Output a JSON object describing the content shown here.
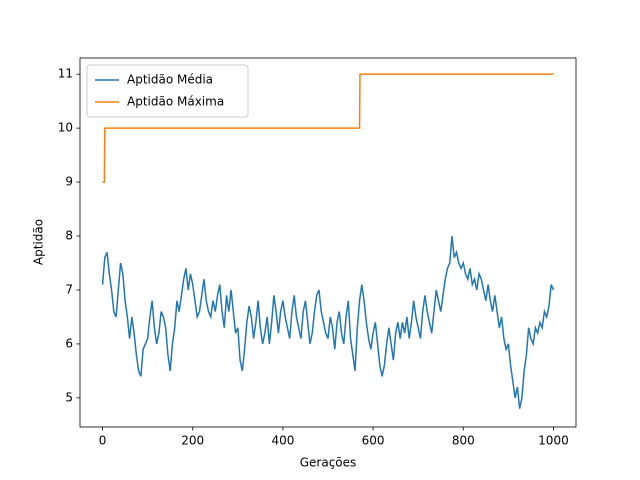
{
  "chart_data": {
    "type": "line",
    "xlabel": "Gerações",
    "ylabel": "Aptidão",
    "xlim": [
      -50,
      1050
    ],
    "ylim": [
      4.46,
      11.3
    ],
    "xticks": [
      0,
      200,
      400,
      600,
      800,
      1000
    ],
    "yticks": [
      5,
      6,
      7,
      8,
      9,
      10,
      11
    ],
    "legend": "upper left",
    "series": [
      {
        "name": "Aptidão Média",
        "color": "#1f77b4",
        "x": [
          0,
          5,
          10,
          15,
          20,
          25,
          30,
          35,
          40,
          45,
          50,
          55,
          60,
          65,
          70,
          75,
          80,
          85,
          90,
          95,
          100,
          105,
          110,
          115,
          120,
          125,
          130,
          135,
          140,
          145,
          150,
          155,
          160,
          165,
          170,
          175,
          180,
          185,
          190,
          195,
          200,
          205,
          210,
          215,
          220,
          225,
          230,
          235,
          240,
          245,
          250,
          255,
          260,
          265,
          270,
          275,
          280,
          285,
          290,
          295,
          300,
          305,
          310,
          315,
          320,
          325,
          330,
          335,
          340,
          345,
          350,
          355,
          360,
          365,
          370,
          375,
          380,
          385,
          390,
          395,
          400,
          405,
          410,
          415,
          420,
          425,
          430,
          435,
          440,
          445,
          450,
          455,
          460,
          465,
          470,
          475,
          480,
          485,
          490,
          495,
          500,
          505,
          510,
          515,
          520,
          525,
          530,
          535,
          540,
          545,
          550,
          555,
          560,
          565,
          570,
          575,
          580,
          585,
          590,
          595,
          600,
          605,
          610,
          615,
          620,
          625,
          630,
          635,
          640,
          645,
          650,
          655,
          660,
          665,
          670,
          675,
          680,
          685,
          690,
          695,
          700,
          705,
          710,
          715,
          720,
          725,
          730,
          735,
          740,
          745,
          750,
          755,
          760,
          765,
          770,
          775,
          780,
          785,
          790,
          795,
          800,
          805,
          810,
          815,
          820,
          825,
          830,
          835,
          840,
          845,
          850,
          855,
          860,
          865,
          870,
          875,
          880,
          885,
          890,
          895,
          900,
          905,
          910,
          915,
          920,
          925,
          930,
          935,
          940,
          945,
          950,
          955,
          960,
          965,
          970,
          975,
          980,
          985,
          990,
          995,
          1000
        ],
        "values": [
          7.1,
          7.6,
          7.7,
          7.3,
          7.0,
          6.6,
          6.5,
          7.0,
          7.5,
          7.3,
          6.8,
          6.5,
          6.1,
          6.5,
          6.2,
          5.8,
          5.5,
          5.4,
          5.9,
          6.0,
          6.1,
          6.5,
          6.8,
          6.3,
          6.0,
          6.2,
          6.6,
          6.5,
          6.3,
          5.8,
          5.5,
          6.0,
          6.3,
          6.8,
          6.6,
          6.9,
          7.2,
          7.4,
          7.0,
          7.3,
          7.1,
          6.8,
          6.5,
          6.6,
          6.9,
          7.2,
          6.8,
          6.6,
          6.5,
          6.8,
          6.6,
          6.9,
          7.1,
          6.6,
          6.3,
          6.9,
          6.6,
          7.0,
          6.6,
          6.2,
          6.3,
          5.7,
          5.5,
          5.9,
          6.4,
          6.7,
          6.5,
          6.1,
          6.4,
          6.8,
          6.3,
          6.0,
          6.2,
          6.5,
          6.0,
          6.4,
          6.9,
          6.6,
          6.2,
          6.6,
          6.8,
          6.5,
          6.3,
          6.1,
          6.6,
          6.9,
          6.5,
          6.3,
          6.1,
          6.6,
          6.8,
          6.4,
          6.0,
          6.2,
          6.6,
          6.9,
          7.0,
          6.6,
          6.4,
          6.2,
          6.1,
          6.5,
          6.3,
          5.9,
          6.4,
          6.6,
          6.2,
          6.0,
          6.5,
          6.8,
          6.1,
          5.8,
          5.5,
          6.3,
          6.8,
          7.1,
          6.8,
          6.4,
          6.1,
          5.9,
          6.2,
          6.4,
          6.0,
          5.6,
          5.4,
          5.6,
          6.0,
          6.3,
          6.0,
          5.7,
          6.2,
          6.4,
          6.1,
          6.4,
          6.2,
          6.5,
          6.1,
          6.4,
          6.8,
          6.5,
          6.3,
          6.1,
          6.6,
          6.9,
          6.6,
          6.4,
          6.2,
          6.6,
          7.0,
          6.8,
          6.6,
          6.9,
          7.2,
          7.4,
          7.5,
          8.0,
          7.6,
          7.7,
          7.5,
          7.4,
          7.5,
          7.3,
          7.2,
          7.4,
          7.1,
          7.2,
          7.0,
          7.3,
          7.2,
          7.0,
          6.8,
          7.1,
          6.8,
          6.6,
          6.9,
          6.6,
          6.3,
          6.5,
          6.1,
          5.9,
          6.0,
          5.6,
          5.3,
          5.0,
          5.2,
          4.8,
          5.0,
          5.5,
          5.8,
          6.3,
          6.1,
          6.0,
          6.3,
          6.2,
          6.4,
          6.3,
          6.6,
          6.5,
          6.7,
          7.1,
          7.0
        ]
      },
      {
        "name": "Aptidão Máxima",
        "color": "#ff7f0e",
        "x": [
          0,
          4,
          5,
          570,
          571,
          1000
        ],
        "values": [
          9,
          9,
          10,
          10,
          11,
          11
        ]
      }
    ]
  }
}
